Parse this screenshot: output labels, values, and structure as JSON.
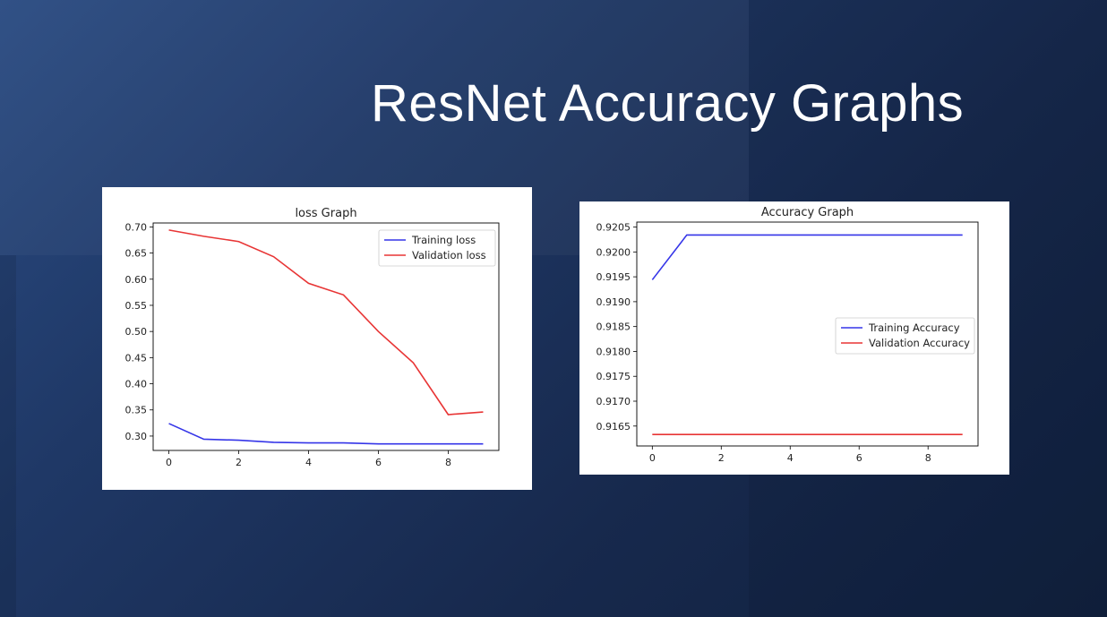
{
  "slide": {
    "title": "ResNet Accuracy Graphs"
  },
  "colors": {
    "training": "#3535e8",
    "validation": "#e83535"
  },
  "chart_data": [
    {
      "type": "line",
      "title": "loss Graph",
      "xlabel": "",
      "ylabel": "",
      "x": [
        0,
        1,
        2,
        3,
        4,
        5,
        6,
        7,
        8,
        9
      ],
      "xlim": [
        -0.45,
        9.45
      ],
      "ylim": [
        0.2725,
        0.7075
      ],
      "xticks": [
        0,
        2,
        4,
        6,
        8
      ],
      "yticks": [
        0.3,
        0.35,
        0.4,
        0.45,
        0.5,
        0.55,
        0.6,
        0.65,
        0.7
      ],
      "tick_decimals": 2,
      "legend_position": "upper right",
      "grid": false,
      "series": [
        {
          "name": "Training loss",
          "color": "#3535e8",
          "values": [
            0.324,
            0.294,
            0.292,
            0.288,
            0.287,
            0.287,
            0.285,
            0.285,
            0.285,
            0.285
          ]
        },
        {
          "name": "Validation loss",
          "color": "#e83535",
          "values": [
            0.694,
            0.682,
            0.672,
            0.643,
            0.592,
            0.57,
            0.5,
            0.44,
            0.341,
            0.346
          ]
        }
      ]
    },
    {
      "type": "line",
      "title": "Accuracy Graph",
      "xlabel": "",
      "ylabel": "",
      "x": [
        0,
        1,
        2,
        3,
        4,
        5,
        6,
        7,
        8,
        9
      ],
      "xlim": [
        -0.45,
        9.45
      ],
      "ylim": [
        0.9161,
        0.9206
      ],
      "xticks": [
        0,
        2,
        4,
        6,
        8
      ],
      "yticks": [
        0.9165,
        0.917,
        0.9175,
        0.918,
        0.9185,
        0.919,
        0.9195,
        0.92,
        0.9205
      ],
      "tick_decimals": 4,
      "legend_position": "center right",
      "grid": false,
      "series": [
        {
          "name": "Training Accuracy",
          "color": "#3535e8",
          "values": [
            0.91944,
            0.92034,
            0.92034,
            0.92034,
            0.92034,
            0.92034,
            0.92034,
            0.92034,
            0.92034,
            0.92034
          ]
        },
        {
          "name": "Validation Accuracy",
          "color": "#e83535",
          "values": [
            0.91633,
            0.91633,
            0.91633,
            0.91633,
            0.91633,
            0.91633,
            0.91633,
            0.91633,
            0.91633,
            0.91633
          ]
        }
      ]
    }
  ]
}
